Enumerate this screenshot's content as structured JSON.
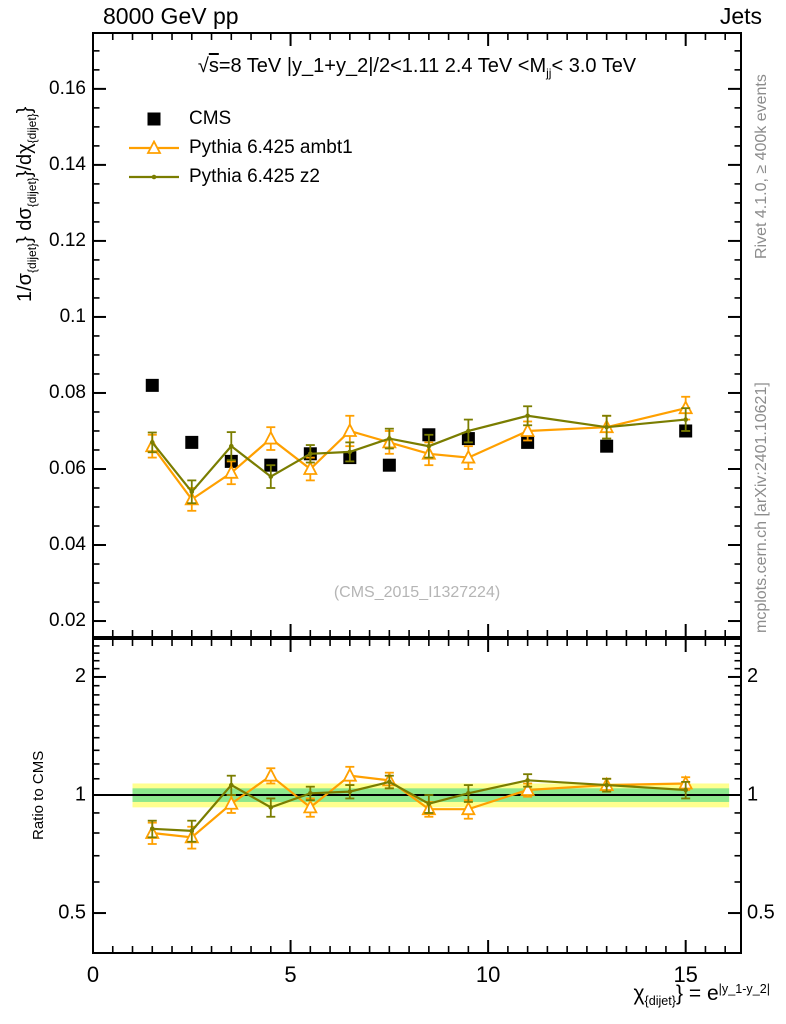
{
  "header": {
    "left": "8000 GeV pp",
    "right": "Jets"
  },
  "watermark": "(CMS_2015_I1327224)",
  "side_notes": {
    "top": "Rivet 4.1.0, ≥ 400k events",
    "bottom": "mcplots.cern.ch [arXiv:2401.10621]"
  },
  "legend": {
    "items": [
      {
        "id": "cms",
        "label": "CMS",
        "marker": "square",
        "color": "#000000"
      },
      {
        "id": "ambt1",
        "label": "Pythia 6.425 ambt1",
        "marker": "triangle",
        "color": "#ffa000"
      },
      {
        "id": "z2",
        "label": "Pythia 6.425 z2",
        "marker": "dot",
        "color": "#7a7d00"
      }
    ]
  },
  "chart_data": {
    "type": "line",
    "title": "√s=8 TeV |y_1+y_2|/2<1.11 2.4 TeV <M_jj< 3.0 TeV",
    "title_parts": [
      {
        "t": "√"
      },
      {
        "t": "s",
        "s": "ov"
      },
      {
        "t": "=8 TeV |y_1+y_2|/2<1.11 2.4 TeV <M"
      },
      {
        "t": "jj",
        "s": "sub"
      },
      {
        "t": "< 3.0 TeV"
      }
    ],
    "xlabel": "χ_{dijet}} = e^|y_1-y_2|",
    "xlabel_parts": [
      {
        "t": "χ"
      },
      {
        "t": "{dijet}",
        "s": "sub"
      },
      {
        "t": "} = e"
      },
      {
        "t": "|y_1-y_2|",
        "s": "sup"
      }
    ],
    "ylabel": "1/σ_{dijet}} dσ_{dijet}}/dχ_{dijet}}",
    "ylabel_parts": [
      {
        "t": "1/σ"
      },
      {
        "t": "{dijet}",
        "s": "sub"
      },
      {
        "t": "} dσ"
      },
      {
        "t": "{dijet}",
        "s": "sub"
      },
      {
        "t": "}/dχ"
      },
      {
        "t": "{dijet}",
        "s": "sub"
      },
      {
        "t": "}"
      }
    ],
    "ratio_ylabel": "Ratio to CMS",
    "xlim": [
      0,
      16.4
    ],
    "ylim": [
      0.0158,
      0.1747
    ],
    "ratio_ylim": [
      0.395,
      2.5
    ],
    "ratio_scale": "log",
    "grid": false,
    "x_major_ticks": [
      0,
      5,
      10,
      15
    ],
    "x_tick_labels": [
      "0",
      "5",
      "10",
      "15"
    ],
    "x_minor_step": 0.5,
    "y_major_ticks": [
      0.02,
      0.04,
      0.06,
      0.08,
      0.1,
      0.12,
      0.14,
      0.16
    ],
    "y_tick_labels": [
      "0.02",
      "0.04",
      "0.06",
      "0.08",
      "0.1",
      "0.12",
      "0.14",
      "0.16"
    ],
    "y_minor_step": 0.005,
    "ratio_major_ticks": [
      0.5,
      1,
      2
    ],
    "ratio_tick_labels": [
      "0.5",
      "1",
      "2"
    ],
    "ratio_minor_ticks": [
      0.4,
      0.6,
      0.7,
      0.8,
      0.9,
      1.1,
      1.2,
      1.3,
      1.4,
      1.5,
      1.6,
      1.7,
      1.8,
      1.9,
      2.1,
      2.2,
      2.3,
      2.4
    ],
    "x": [
      1.5,
      2.5,
      3.5,
      4.5,
      5.5,
      6.5,
      7.5,
      8.5,
      9.5,
      11,
      13,
      15
    ],
    "series": [
      {
        "id": "cms",
        "name": "CMS",
        "marker": "square",
        "color": "#000000",
        "values": [
          0.082,
          0.067,
          0.062,
          0.061,
          0.064,
          0.063,
          0.061,
          0.069,
          0.068,
          0.067,
          0.066,
          0.07
        ]
      },
      {
        "id": "ambt1",
        "name": "Pythia 6.425 ambt1",
        "marker": "triangle",
        "color": "#ffa000",
        "values": [
          0.066,
          0.052,
          0.059,
          0.068,
          0.06,
          0.07,
          0.067,
          0.064,
          0.063,
          0.07,
          0.071,
          0.076
        ],
        "errors": [
          0.003,
          0.003,
          0.003,
          0.003,
          0.003,
          0.004,
          0.003,
          0.003,
          0.003,
          0.0025,
          0.003,
          0.003
        ],
        "ratio": [
          0.8,
          0.78,
          0.95,
          1.12,
          0.93,
          1.12,
          1.09,
          0.92,
          0.92,
          1.03,
          1.06,
          1.07
        ],
        "ratio_errors": [
          0.05,
          0.05,
          0.05,
          0.05,
          0.05,
          0.06,
          0.05,
          0.04,
          0.05,
          0.04,
          0.04,
          0.04
        ]
      },
      {
        "id": "z2",
        "name": "Pythia 6.425 z2",
        "marker": "dot",
        "color": "#7a7d00",
        "values": [
          0.067,
          0.054,
          0.066,
          0.058,
          0.064,
          0.0645,
          0.068,
          0.066,
          0.07,
          0.074,
          0.071,
          0.073
        ],
        "errors": [
          0.0026,
          0.003,
          0.0037,
          0.003,
          0.0023,
          0.0025,
          0.0026,
          0.003,
          0.003,
          0.0025,
          0.003,
          0.003
        ],
        "ratio": [
          0.82,
          0.81,
          1.06,
          0.93,
          1.01,
          1.02,
          1.08,
          0.95,
          1.01,
          1.09,
          1.06,
          1.03
        ],
        "ratio_errors": [
          0.04,
          0.05,
          0.06,
          0.05,
          0.04,
          0.04,
          0.04,
          0.05,
          0.05,
          0.04,
          0.04,
          0.05
        ]
      }
    ],
    "bands": {
      "x_range": [
        1,
        16.1
      ],
      "yellow": [
        0.93,
        1.07
      ],
      "yellow_color": "#ffff8f",
      "green": [
        0.96,
        1.04
      ],
      "green_color": "#8ce78c"
    },
    "reference_line": 1
  }
}
